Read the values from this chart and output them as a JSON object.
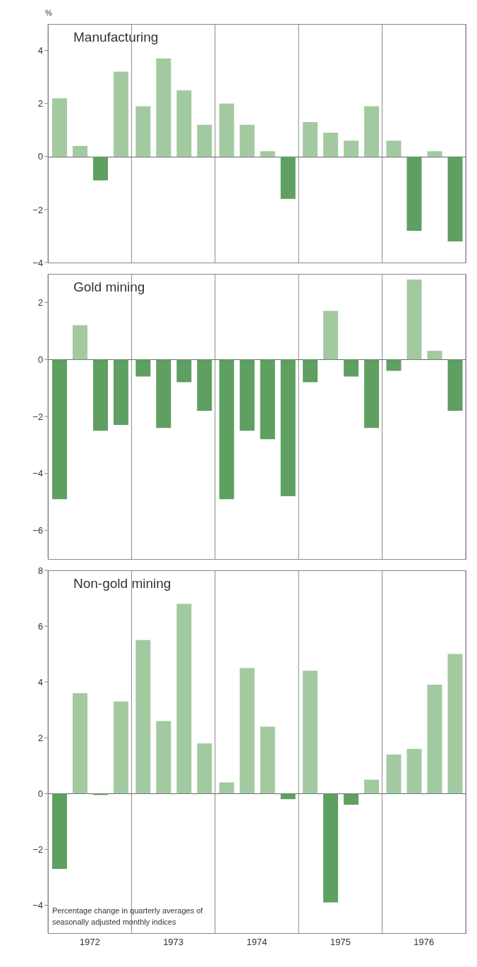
{
  "chart_data": [
    {
      "type": "bar",
      "title": "Manufacturing",
      "ylabel": "%",
      "categories": [
        "1972",
        "1973",
        "1974",
        "1975",
        "1976"
      ],
      "ylim": [
        -4,
        5
      ],
      "yticks": [
        -4,
        -2,
        0,
        2,
        4
      ],
      "grid": "x",
      "tick_labels": "y",
      "series": [
        {
          "values": [
            2.2,
            1.9,
            2.0,
            1.3,
            0.6
          ],
          "colors": [
            "#a3c9a0",
            "#a3c9a0",
            "#a3c9a0",
            "#a3c9a0",
            "#a3c9a0"
          ]
        },
        {
          "values": [
            0.4,
            3.7,
            1.2,
            0.9,
            -2.8
          ],
          "colors": [
            "#a3c9a0",
            "#a3c9a0",
            "#a3c9a0",
            "#a3c9a0",
            "#5f9f62"
          ]
        },
        {
          "values": [
            -0.9,
            2.5,
            0.2,
            0.6,
            0.2
          ],
          "colors": [
            "#5f9f62",
            "#a3c9a0",
            "#a3c9a0",
            "#a3c9a0",
            "#a3c9a0"
          ]
        },
        {
          "values": [
            3.2,
            1.2,
            -1.6,
            1.9,
            -3.2
          ],
          "colors": [
            "#a3c9a0",
            "#a3c9a0",
            "#5f9f62",
            "#a3c9a0",
            "#5f9f62"
          ]
        }
      ]
    },
    {
      "type": "bar",
      "title": "Gold mining",
      "categories": [
        "1972",
        "1973",
        "1974",
        "1975",
        "1976"
      ],
      "ylim": [
        -7,
        3
      ],
      "yticks": [
        -6,
        -4,
        -2,
        0,
        2
      ],
      "grid": "x",
      "tick_labels": "y",
      "series": [
        {
          "values": [
            -4.9,
            -0.6,
            -4.9,
            -0.8,
            -0.4
          ],
          "colors": [
            "#5f9f62",
            "#5f9f62",
            "#5f9f62",
            "#5f9f62",
            "#5f9f62"
          ]
        },
        {
          "values": [
            1.2,
            -2.4,
            -2.5,
            1.7,
            2.8
          ],
          "colors": [
            "#a3c9a0",
            "#5f9f62",
            "#5f9f62",
            "#a3c9a0",
            "#a3c9a0"
          ]
        },
        {
          "values": [
            -2.5,
            -0.8,
            -2.8,
            -0.6,
            0.3
          ],
          "colors": [
            "#5f9f62",
            "#5f9f62",
            "#5f9f62",
            "#5f9f62",
            "#a3c9a0"
          ]
        },
        {
          "values": [
            -2.3,
            -1.8,
            -4.8,
            -2.4,
            -1.8
          ],
          "colors": [
            "#5f9f62",
            "#5f9f62",
            "#5f9f62",
            "#5f9f62",
            "#5f9f62"
          ]
        }
      ]
    },
    {
      "type": "bar",
      "title": "Non-gold mining",
      "categories": [
        "1972",
        "1973",
        "1974",
        "1975",
        "1976"
      ],
      "ylim": [
        -5,
        8
      ],
      "yticks": [
        -4,
        -2,
        0,
        2,
        4,
        6,
        8
      ],
      "grid": "x",
      "annotations": [
        "Percentage change in quarterly averages of\nseasonally adjusted monthly indices"
      ],
      "series": [
        {
          "values": [
            -2.7,
            5.5,
            0.4,
            4.4,
            1.4
          ],
          "colors": [
            "#5f9f62",
            "#a3c9a0",
            "#a3c9a0",
            "#a3c9a0",
            "#a3c9a0"
          ]
        },
        {
          "values": [
            3.6,
            2.6,
            4.5,
            -3.9,
            1.6
          ],
          "colors": [
            "#a3c9a0",
            "#a3c9a0",
            "#a3c9a0",
            "#5f9f62",
            "#a3c9a0"
          ]
        },
        {
          "values": [
            -0.05,
            6.8,
            2.4,
            -0.4,
            3.9
          ],
          "colors": [
            "#5f9f62",
            "#a3c9a0",
            "#a3c9a0",
            "#5f9f62",
            "#a3c9a0"
          ]
        },
        {
          "values": [
            3.3,
            1.8,
            -0.2,
            0.5,
            5.0
          ],
          "colors": [
            "#a3c9a0",
            "#a3c9a0",
            "#5f9f62",
            "#a3c9a0",
            "#a3c9a0"
          ]
        }
      ]
    }
  ]
}
